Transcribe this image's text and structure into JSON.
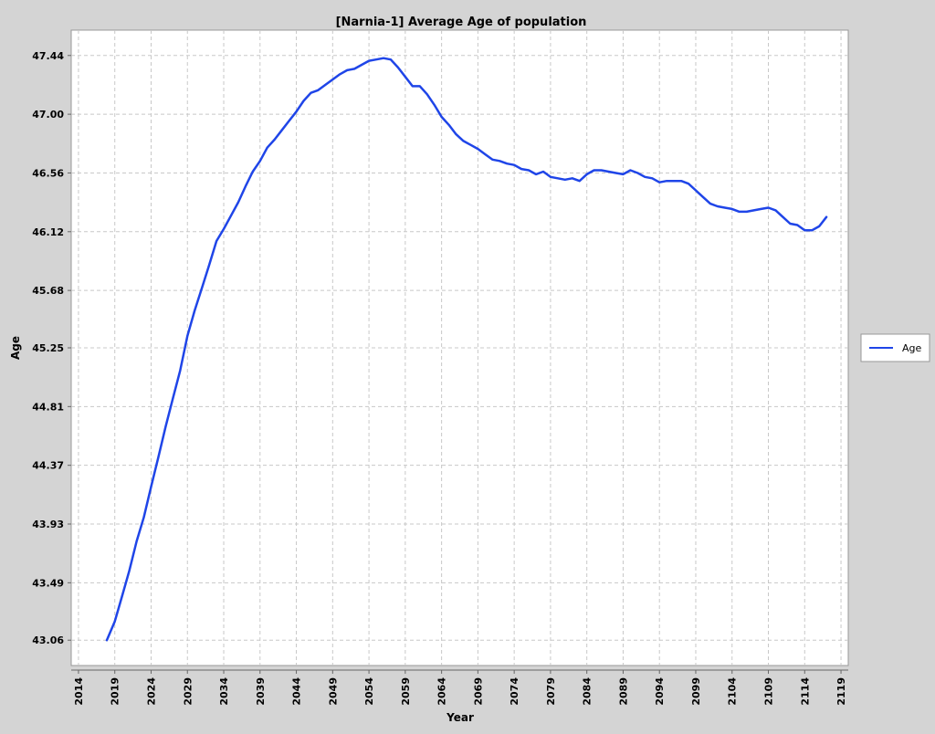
{
  "chart_data": {
    "type": "line",
    "title": "[Narnia-1] Average Age of population",
    "xlabel": "Year",
    "ylabel": "Age",
    "xlim": [
      2013,
      2120
    ],
    "ylim": [
      42.87,
      47.63
    ],
    "xticks": [
      "2014",
      "2019",
      "2024",
      "2029",
      "2034",
      "2039",
      "2044",
      "2049",
      "2054",
      "2059",
      "2064",
      "2069",
      "2074",
      "2079",
      "2084",
      "2089",
      "2094",
      "2099",
      "2104",
      "2109",
      "2114",
      "2119"
    ],
    "yticks": [
      "43.06",
      "43.49",
      "43.93",
      "44.37",
      "44.81",
      "45.25",
      "45.68",
      "46.12",
      "46.56",
      "47.00",
      "47.44"
    ],
    "grid": true,
    "legend_position": "right",
    "series": [
      {
        "name": "Age",
        "color": "#1f45e8",
        "x": [
          2017.9,
          2019,
          2020,
          2021,
          2022,
          2023,
          2024,
          2025,
          2026,
          2027,
          2028,
          2029,
          2030,
          2031,
          2032,
          2033,
          2034,
          2035,
          2036,
          2037,
          2038,
          2039,
          2040,
          2041,
          2042,
          2043,
          2044,
          2045,
          2046,
          2047,
          2048,
          2049,
          2050,
          2051,
          2052,
          2053,
          2054,
          2055,
          2056,
          2057,
          2058,
          2059,
          2060,
          2061,
          2062,
          2063,
          2064,
          2065,
          2066,
          2067,
          2068,
          2069,
          2070,
          2071,
          2072,
          2073,
          2074,
          2075,
          2076,
          2077,
          2078,
          2079,
          2080,
          2081,
          2082,
          2083,
          2084,
          2085,
          2086,
          2087,
          2088,
          2089,
          2090,
          2091,
          2092,
          2093,
          2094,
          2095,
          2096,
          2097,
          2098,
          2099,
          2100,
          2101,
          2102,
          2103,
          2104,
          2105,
          2106,
          2107,
          2108,
          2109,
          2110,
          2111,
          2112,
          2113,
          2114,
          2115,
          2116,
          2117
        ],
        "values": [
          43.06,
          43.2,
          43.39,
          43.58,
          43.8,
          43.98,
          44.21,
          44.43,
          44.66,
          44.87,
          45.08,
          45.34,
          45.53,
          45.7,
          45.87,
          46.05,
          46.14,
          46.24,
          46.34,
          46.46,
          46.57,
          46.65,
          46.75,
          46.81,
          46.88,
          46.95,
          47.02,
          47.1,
          47.16,
          47.18,
          47.22,
          47.26,
          47.3,
          47.33,
          47.34,
          47.37,
          47.4,
          47.41,
          47.42,
          47.41,
          47.35,
          47.28,
          47.21,
          47.21,
          47.15,
          47.07,
          46.98,
          46.92,
          46.85,
          46.8,
          46.77,
          46.74,
          46.7,
          46.66,
          46.65,
          46.63,
          46.62,
          46.59,
          46.58,
          46.55,
          46.57,
          46.53,
          46.52,
          46.51,
          46.52,
          46.5,
          46.55,
          46.58,
          46.58,
          46.57,
          46.56,
          46.55,
          46.58,
          46.56,
          46.53,
          46.52,
          46.49,
          46.5,
          46.5,
          46.5,
          46.48,
          46.43,
          46.38,
          46.33,
          46.31,
          46.3,
          46.29,
          46.27,
          46.27,
          46.28,
          46.29,
          46.3,
          46.28,
          46.23,
          46.18,
          46.17,
          46.13,
          46.13,
          46.16,
          46.23
        ]
      }
    ]
  }
}
